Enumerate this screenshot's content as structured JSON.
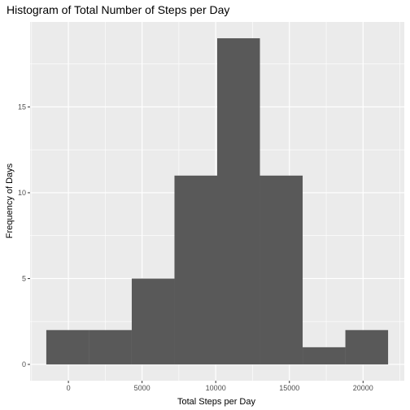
{
  "chart_data": {
    "type": "bar",
    "title": "Histogram of Total Number of Steps per Day",
    "xlabel": "Total Steps per Day",
    "ylabel": "Frequency of Days",
    "bins": [
      {
        "start": -1500,
        "end": 1400,
        "count": 2
      },
      {
        "start": 1400,
        "end": 4300,
        "count": 2
      },
      {
        "start": 4300,
        "end": 7200,
        "count": 5
      },
      {
        "start": 7200,
        "end": 10100,
        "count": 11
      },
      {
        "start": 10100,
        "end": 13000,
        "count": 19
      },
      {
        "start": 13000,
        "end": 15900,
        "count": 11
      },
      {
        "start": 15900,
        "end": 18800,
        "count": 1
      },
      {
        "start": 18800,
        "end": 21700,
        "count": 2
      }
    ],
    "xlim": [
      -2600,
      22800
    ],
    "ylim": [
      -0.95,
      19.95
    ],
    "xticks": [
      {
        "value": 0,
        "label": "0"
      },
      {
        "value": 5000,
        "label": "5000"
      },
      {
        "value": 10000,
        "label": "10000"
      },
      {
        "value": 15000,
        "label": "15000"
      },
      {
        "value": 20000,
        "label": "20000"
      }
    ],
    "yticks": [
      {
        "value": 0,
        "label": "0"
      },
      {
        "value": 5,
        "label": "5"
      },
      {
        "value": 10,
        "label": "10"
      },
      {
        "value": 15,
        "label": "15"
      }
    ],
    "bar_color": "#595959",
    "panel_bg": "#ebebeb",
    "grid": true
  }
}
